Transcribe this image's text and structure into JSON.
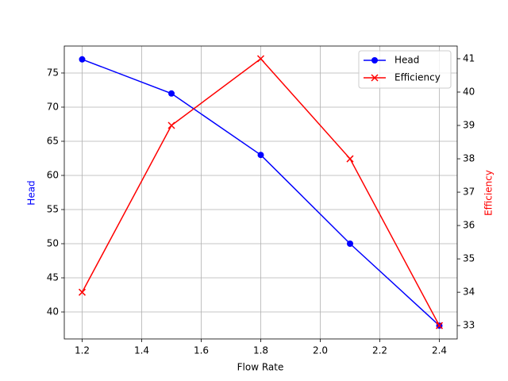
{
  "chart_data": {
    "type": "line",
    "x_label": "Flow Rate",
    "y_label": "Head",
    "y2_label": "Efficiency",
    "x": [
      1.2,
      1.5,
      1.8,
      2.1,
      2.4
    ],
    "series": [
      {
        "name": "Head",
        "color": "#0000ff",
        "marker": "o",
        "values": [
          77,
          72,
          63,
          50,
          38
        ]
      },
      {
        "name": "Efficiency",
        "color": "#ff0000",
        "marker": "x",
        "axis": "y2",
        "values": [
          34,
          39,
          41,
          38,
          33
        ]
      }
    ],
    "xlim": [
      1.14,
      2.46
    ],
    "xticks": [
      1.2,
      1.4,
      1.6,
      1.8,
      {
        "value": 2,
        "label": "2.0"
      },
      2.2,
      2.4
    ],
    "ylim": [
      36.05,
      78.95
    ],
    "yticks": [
      40,
      45,
      50,
      55,
      60,
      65,
      70,
      75
    ],
    "y2lim": [
      32.6,
      41.38
    ],
    "y2ticks": [
      33,
      34,
      35,
      36,
      37,
      38,
      39,
      40,
      41
    ],
    "grid": true,
    "legend": "upper right"
  }
}
